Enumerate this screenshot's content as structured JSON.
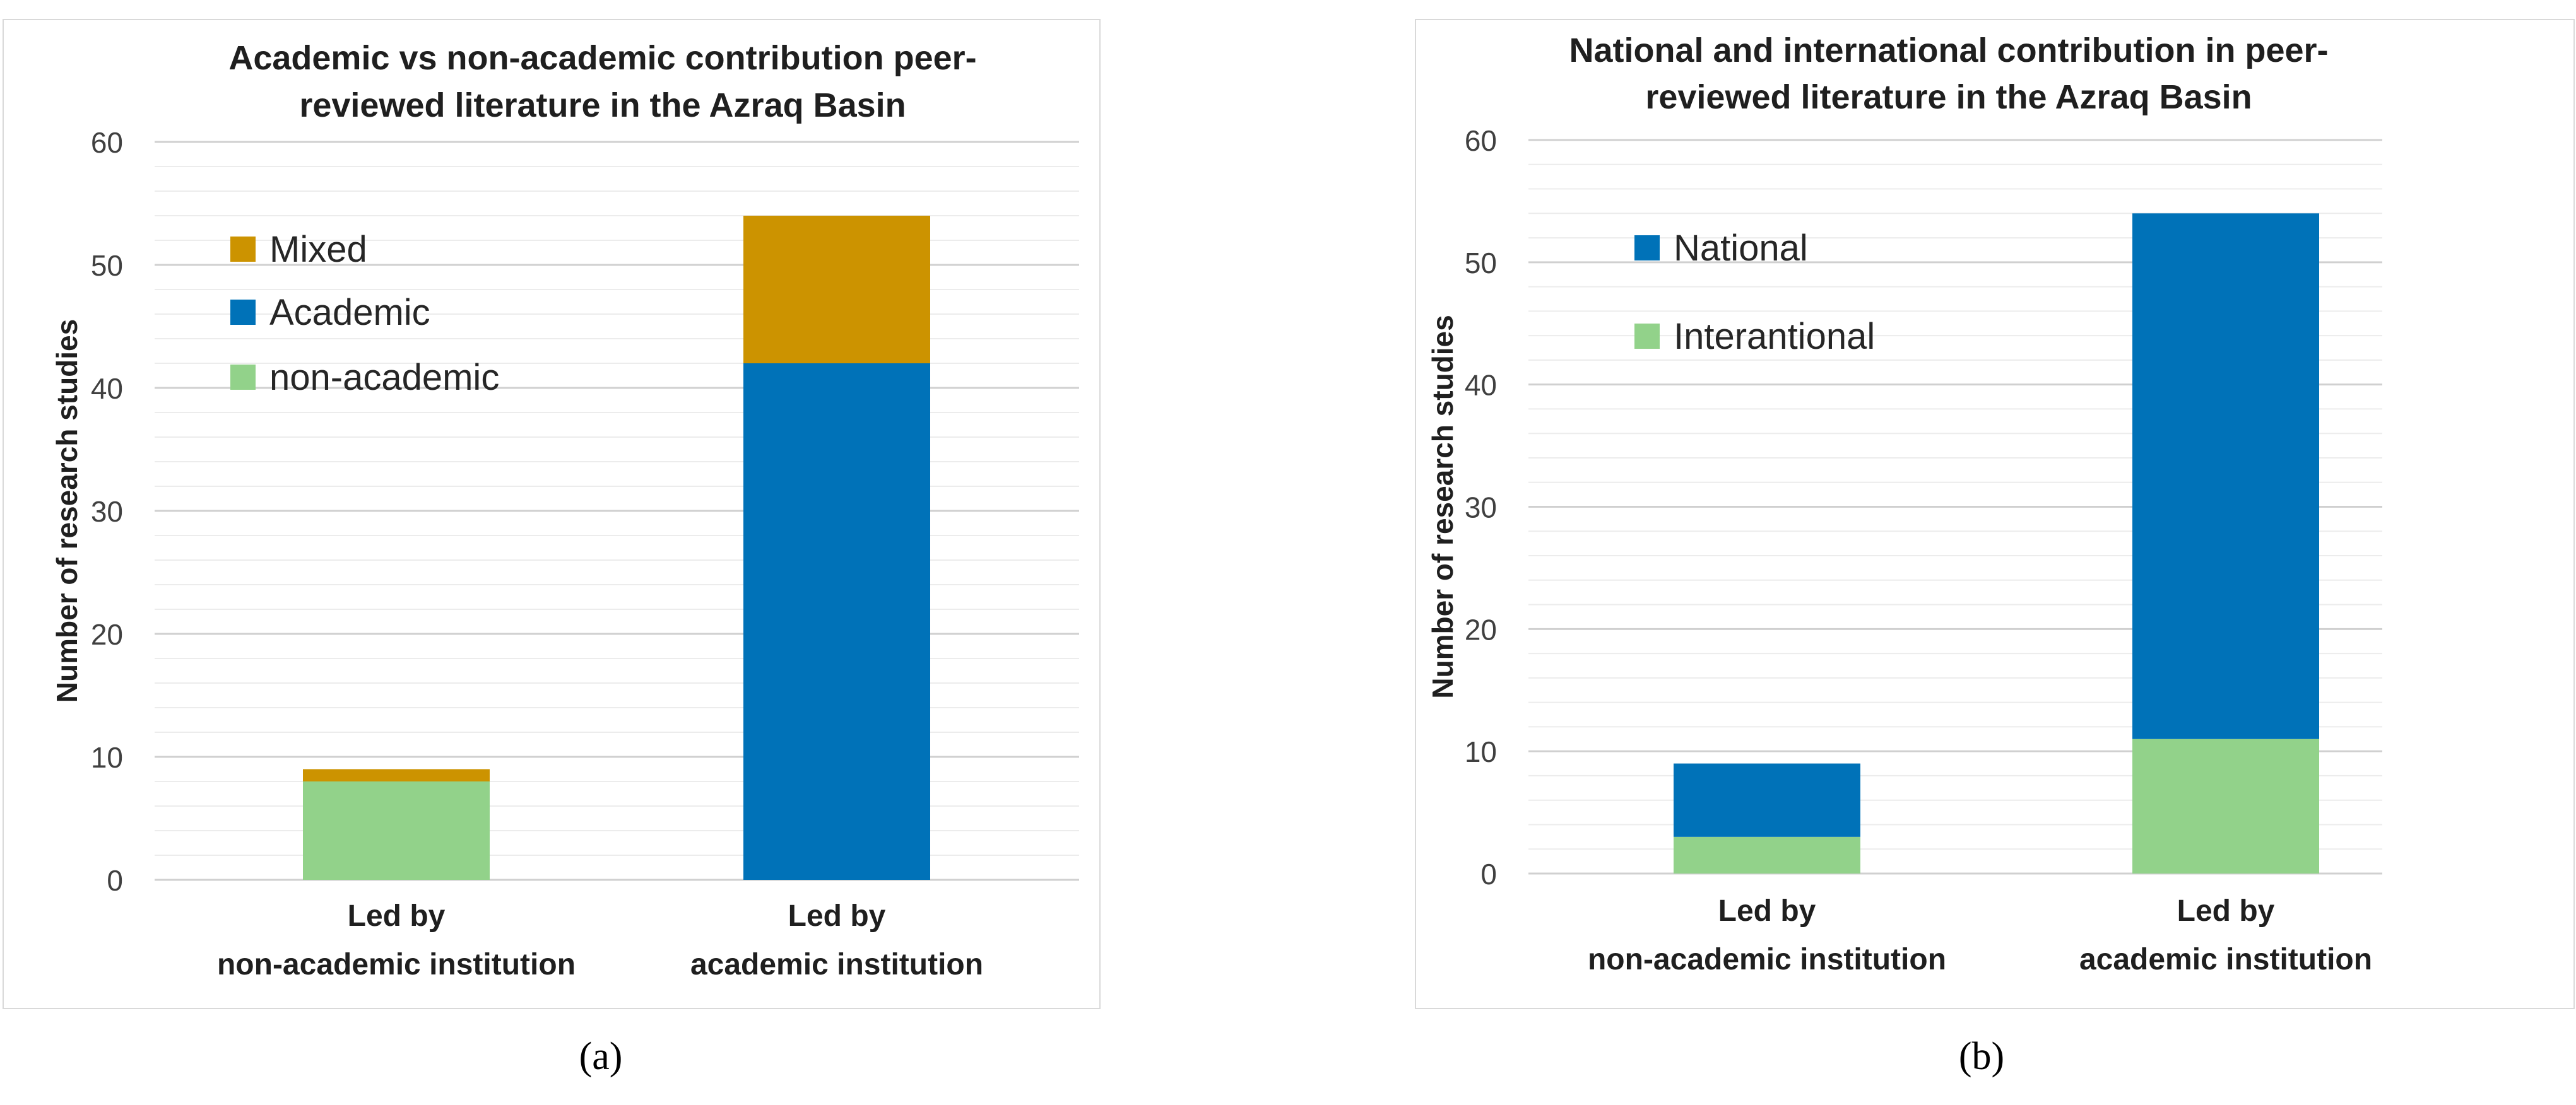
{
  "chart_data": [
    {
      "type": "bar",
      "stacked": true,
      "panel_label": "(a)",
      "title_lines": [
        "Academic vs non-academic contribution peer-",
        "reviewed literature in the Azraq Basin"
      ],
      "ylabel": "Number of research studies",
      "xlabel": "",
      "ylim": [
        0,
        60
      ],
      "yticks": [
        0,
        10,
        20,
        30,
        40,
        50,
        60
      ],
      "grid": true,
      "legend_position": "top-left",
      "categories": [
        [
          "Led by",
          "non-academic institution"
        ],
        [
          "Led by",
          "academic institution"
        ]
      ],
      "series": [
        {
          "name": "non-academic",
          "color": "#92d28a",
          "values": [
            8,
            0
          ]
        },
        {
          "name": "Academic",
          "color": "#0072b8",
          "values": [
            0,
            42
          ]
        },
        {
          "name": "Mixed",
          "color": "#cc9300",
          "values": [
            1,
            12
          ]
        }
      ],
      "legend_order": [
        "Mixed",
        "Academic",
        "non-academic"
      ]
    },
    {
      "type": "bar",
      "stacked": true,
      "panel_label": "(b)",
      "title_lines": [
        "National and international contribution in peer-",
        "reviewed literature in the Azraq Basin"
      ],
      "ylabel": "Number of research studies",
      "xlabel": "",
      "ylim": [
        0,
        60
      ],
      "yticks": [
        0,
        10,
        20,
        30,
        40,
        50,
        60
      ],
      "grid": true,
      "legend_position": "top-left",
      "categories": [
        [
          "Led by",
          "non-academic institution"
        ],
        [
          "Led by",
          "academic institution"
        ]
      ],
      "series": [
        {
          "name": "Interantional",
          "color": "#92d28a",
          "values": [
            3,
            11
          ]
        },
        {
          "name": "National",
          "color": "#0072b8",
          "values": [
            6,
            43
          ]
        }
      ],
      "legend_order": [
        "National",
        "Interantional"
      ]
    }
  ]
}
